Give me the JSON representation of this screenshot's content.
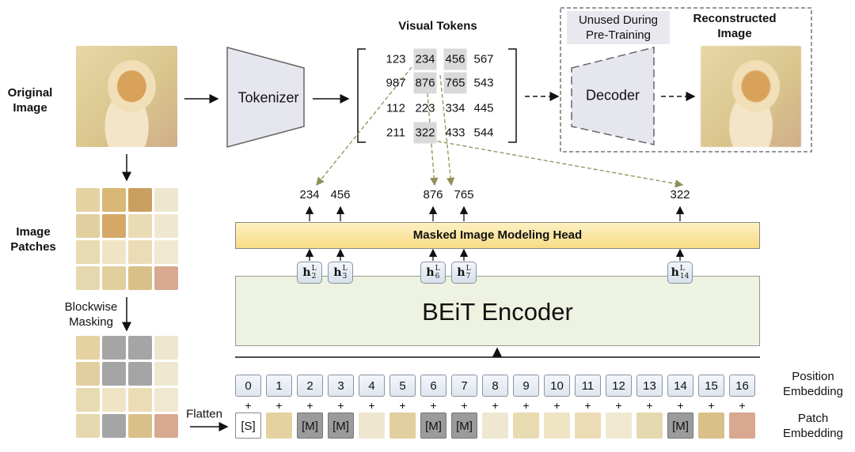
{
  "labels": {
    "original_image": "Original\nImage",
    "image_patches": "Image\nPatches",
    "blockwise_masking": "Blockwise\nMasking",
    "flatten": "Flatten",
    "tokenizer": "Tokenizer",
    "visual_tokens": "Visual Tokens",
    "unused": "Unused During\nPre-Training",
    "decoder": "Decoder",
    "reconstructed_image": "Reconstructed\nImage",
    "mim_head": "Masked Image Modeling Head",
    "encoder": "BEiT Encoder",
    "position_embedding": "Position\nEmbedding",
    "patch_embedding": "Patch\nEmbedding"
  },
  "visual_tokens": [
    [
      "123",
      "234",
      "456",
      "567"
    ],
    [
      "987",
      "876",
      "765",
      "543"
    ],
    [
      "112",
      "223",
      "334",
      "445"
    ],
    [
      "211",
      "322",
      "433",
      "544"
    ]
  ],
  "highlighted_tokens": [
    [
      0,
      1
    ],
    [
      0,
      2
    ],
    [
      1,
      1
    ],
    [
      1,
      2
    ],
    [
      3,
      1
    ]
  ],
  "positions": [
    "0",
    "1",
    "2",
    "3",
    "4",
    "5",
    "6",
    "7",
    "8",
    "9",
    "10",
    "11",
    "12",
    "13",
    "14",
    "15",
    "16"
  ],
  "plus": "+",
  "special_token": "[S]",
  "mask_token": "[M]",
  "masked_positions": [
    2,
    3,
    6,
    7,
    14
  ],
  "hidden_states": [
    {
      "pos": 2,
      "h": "h",
      "sub": "2",
      "sup": "L"
    },
    {
      "pos": 3,
      "h": "h",
      "sub": "3",
      "sup": "L"
    },
    {
      "pos": 6,
      "h": "h",
      "sub": "6",
      "sup": "L"
    },
    {
      "pos": 7,
      "h": "h",
      "sub": "7",
      "sup": "L"
    },
    {
      "pos": 14,
      "h": "h",
      "sub": "14",
      "sup": "L"
    }
  ],
  "outputs": [
    "234",
    "456",
    "876",
    "765",
    "322"
  ],
  "colors": {
    "mim_head": "#fbe39a",
    "encoder": "#eef3e1",
    "mask": "#9b9b9b",
    "token_highlight": "#d9d9d9",
    "dashed_arrow": "#8f8f5a",
    "trapezoid": "#e6e6ef"
  }
}
